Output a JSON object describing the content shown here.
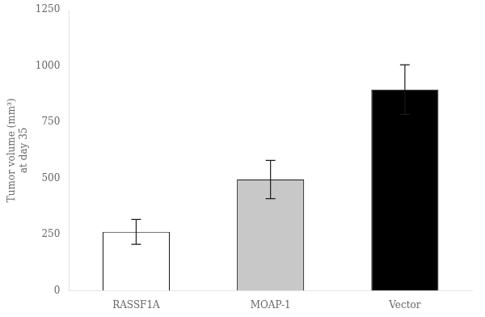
{
  "chart_data": {
    "type": "bar",
    "categories": [
      "RASSF1A",
      "MOAP-1",
      "Vector"
    ],
    "values": [
      262,
      495,
      895
    ],
    "errors": [
      55,
      85,
      110
    ],
    "colors": [
      "#ffffff",
      "#c8c8c8",
      "#000000"
    ],
    "ylabel": "Tumor volume (mm³)\nat day 35",
    "ylim": [
      0,
      1250
    ],
    "yticks": [
      0,
      250,
      500,
      750,
      1000,
      1250
    ],
    "grid": false
  }
}
